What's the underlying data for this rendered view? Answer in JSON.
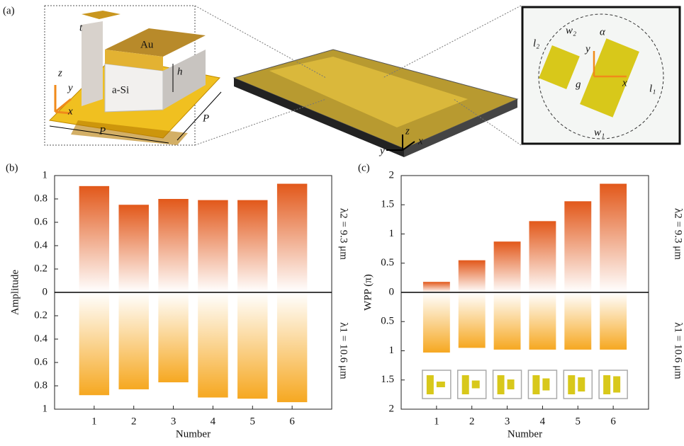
{
  "panel_a": {
    "label": "(a)",
    "unit_cell": {
      "t": "t",
      "au": "Au",
      "h": "h",
      "si": "a-Si",
      "z": "z",
      "y": "y",
      "x": "x",
      "p_front": "P",
      "p_side": "P"
    },
    "array": {
      "z": "z",
      "y": "y",
      "x": "x"
    },
    "top_view": {
      "l2": "l₂",
      "w2": "w₂",
      "alpha": "α",
      "y": "y",
      "g": "g",
      "x": "x",
      "l1": "l₁",
      "w1": "w₁"
    }
  },
  "chart_data": [
    {
      "type": "bar",
      "label": "(b)",
      "y_label": "Amplitude",
      "x_label": "Number",
      "categories": [
        "1",
        "2",
        "3",
        "4",
        "5",
        "6"
      ],
      "series": [
        {
          "name": "λ2 = 9.3 μm",
          "color": "#e2581a",
          "values": [
            0.91,
            0.75,
            0.8,
            0.79,
            0.79,
            0.93
          ]
        },
        {
          "name": "λ1 = 10.6 μm",
          "color": "#f6a821",
          "values": [
            -0.88,
            -0.83,
            -0.77,
            -0.9,
            -0.91,
            -0.94
          ]
        }
      ],
      "ylim": [
        -1,
        1
      ],
      "yticks": [
        {
          "value": -1,
          "label": "1"
        },
        {
          "value": -0.8,
          "label": "0.8"
        },
        {
          "value": -0.6,
          "label": "0.6"
        },
        {
          "value": -0.4,
          "label": "0.4"
        },
        {
          "value": -0.2,
          "label": "0.2"
        },
        0,
        0.2,
        0.4,
        0.6,
        0.8,
        1
      ]
    },
    {
      "type": "bar",
      "label": "(c)",
      "y_label": "WPP (π)",
      "x_label": "Number",
      "categories": [
        "1",
        "2",
        "3",
        "4",
        "5",
        "6"
      ],
      "series": [
        {
          "name": "λ2 = 9.3 μm",
          "color": "#e2581a",
          "values": [
            0.18,
            0.55,
            0.87,
            1.22,
            1.56,
            1.86
          ]
        },
        {
          "name": "λ1 = 10.6 μm",
          "color": "#f6a821",
          "values": [
            -1.03,
            -0.95,
            -0.98,
            -0.98,
            -0.98,
            -0.98
          ]
        }
      ],
      "ylim": [
        -2,
        2
      ],
      "yticks": [
        {
          "value": -2,
          "label": "2"
        },
        {
          "value": -1.5,
          "label": "1.5"
        },
        {
          "value": -1,
          "label": "1"
        },
        {
          "value": -0.5,
          "label": "0.5"
        },
        0,
        0.5,
        1,
        1.5,
        2
      ]
    }
  ]
}
